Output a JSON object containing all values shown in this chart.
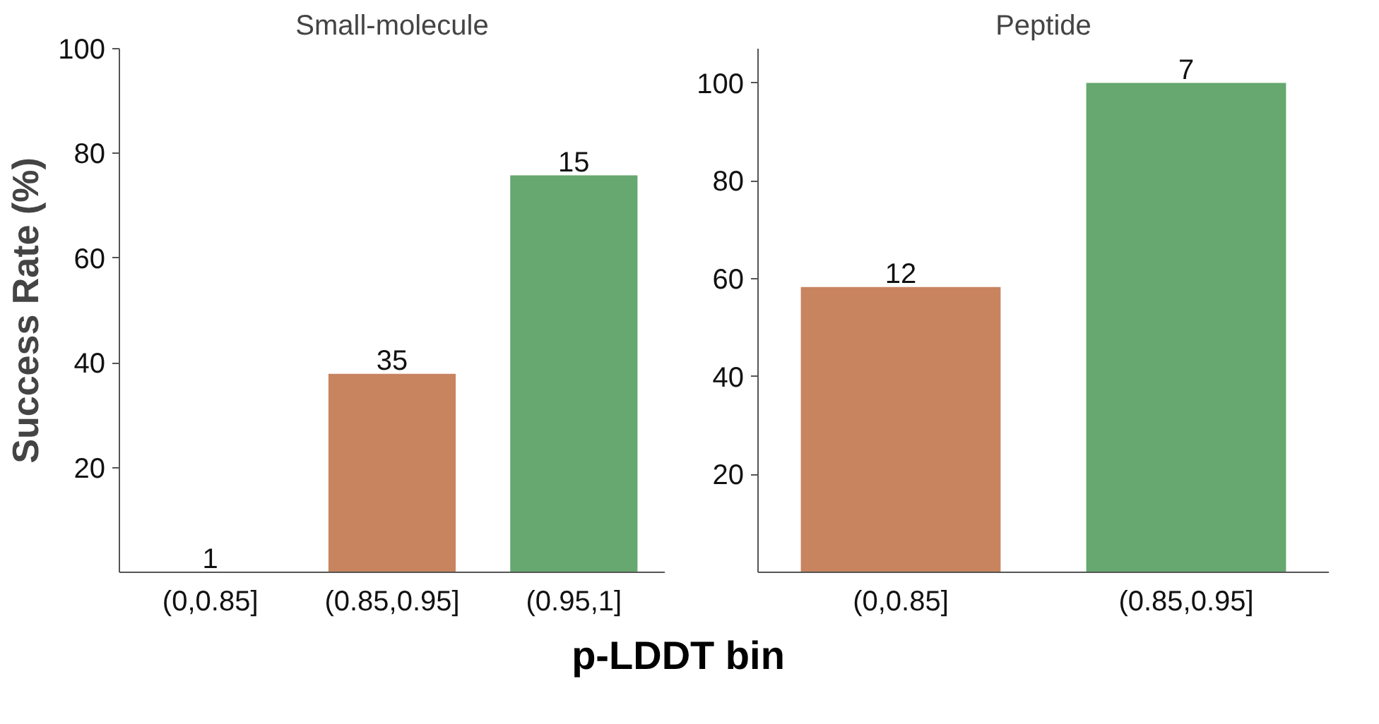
{
  "chart_data": [
    {
      "type": "bar",
      "title": "Small-molecule",
      "ylabel": "Success Rate (%)",
      "xlabel": "p-LDDT bin",
      "categories": [
        "(0,0.85]",
        "(0.85,0.95]",
        "(0.95,1]"
      ],
      "values": [
        0,
        37.9,
        75.8
      ],
      "colors": [
        "#c8845f",
        "#c8845f",
        "#66a86f"
      ],
      "annotations": [
        {
          "text": "1",
          "x": "(0,0.85]",
          "y": 0
        },
        {
          "text": "35",
          "x": "(0.85,0.95]",
          "y": 37.9
        },
        {
          "text": "15",
          "x": "(0.95,1]",
          "y": 75.8
        }
      ],
      "ylim": [
        0,
        100
      ],
      "yticks": [
        20,
        40,
        60,
        80,
        100
      ],
      "grid": false
    },
    {
      "type": "bar",
      "title": "Peptide",
      "categories": [
        "(0,0.85]",
        "(0.85,0.95]"
      ],
      "values": [
        58.3,
        100
      ],
      "colors": [
        "#c8845f",
        "#66a86f"
      ],
      "annotations": [
        {
          "text": "12",
          "x": "(0,0.85]",
          "y": 58.3
        },
        {
          "text": "7",
          "x": "(0.85,0.95]",
          "y": 100
        }
      ],
      "ylim": [
        0,
        107
      ],
      "yticks": [
        20,
        40,
        60,
        80,
        100
      ],
      "grid": false
    }
  ]
}
